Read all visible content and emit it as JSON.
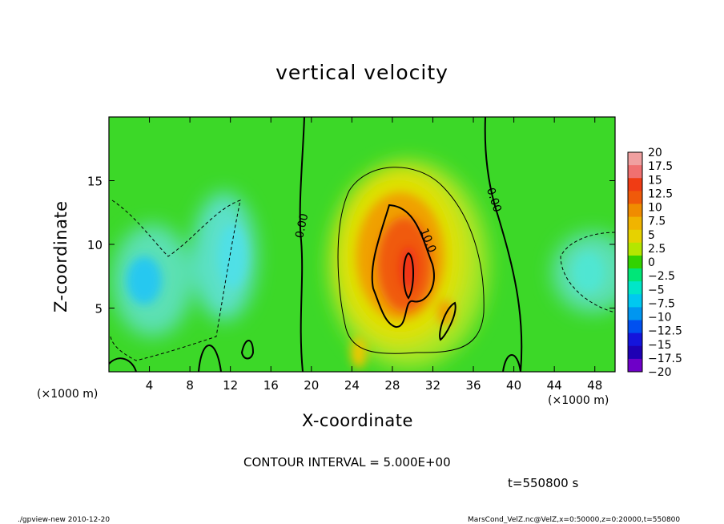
{
  "chart_data": {
    "type": "heatmap",
    "title": "vertical velocity",
    "xlabel": "X-coordinate",
    "ylabel": "Z-coordinate",
    "x_unit_label": "(×1000 m)",
    "x_unit_label_right": "(×1000 m)",
    "xlim": [
      0,
      50
    ],
    "ylim": [
      0,
      20
    ],
    "x_ticks": [
      4,
      8,
      12,
      16,
      20,
      24,
      28,
      32,
      36,
      40,
      44,
      48
    ],
    "y_ticks": [
      5,
      10,
      15
    ],
    "x_tick_labels": [
      "4",
      "8",
      "12",
      "16",
      "20",
      "24",
      "28",
      "32",
      "36",
      "40",
      "44",
      "48"
    ],
    "y_tick_labels": [
      "5",
      "10",
      "15"
    ],
    "colorbar": {
      "levels": [
        20,
        17.5,
        15,
        12.5,
        10,
        7.5,
        5,
        2.5,
        0,
        -2.5,
        -5,
        -7.5,
        -10,
        -12.5,
        -15,
        -17.5,
        -20
      ],
      "labels": [
        "20",
        "17.5",
        "15",
        "12.5",
        "10",
        "7.5",
        "5",
        "2.5",
        "0",
        "−2.5",
        "−5",
        "−7.5",
        "−10",
        "−12.5",
        "−15",
        "−17.5",
        "−20"
      ],
      "colors": [
        "#f0a0a0",
        "#f07070",
        "#f03c14",
        "#f05a0a",
        "#f08c00",
        "#f0b400",
        "#e6d200",
        "#b4e600",
        "#32d200",
        "#00e678",
        "#00e6c8",
        "#00c8f0",
        "#0096f0",
        "#0050f0",
        "#1414dc",
        "#1e00b4",
        "#6e00c8"
      ]
    },
    "contour_labels": [
      {
        "text": "0.00",
        "x": 19.4,
        "z": 11.4
      },
      {
        "text": "0.00",
        "x": 37.7,
        "z": 13.4
      },
      {
        "text": "10.0",
        "x": 31.2,
        "z": 10.2
      }
    ],
    "field_features": [
      {
        "kind": "updraft_core",
        "x": 29.5,
        "z": 8.5,
        "max_value": 15
      },
      {
        "kind": "downdraft",
        "x": 3.5,
        "z": 7.5,
        "min_value": -7.5
      },
      {
        "kind": "downdraft",
        "x": 12,
        "z": 10,
        "min_value": -5
      },
      {
        "kind": "downdraft",
        "x": 47,
        "z": 8,
        "min_value": -5
      }
    ],
    "contour_interval_text": "CONTOUR INTERVAL = 5.000E+00"
  },
  "annotations": {
    "time": "t=550800 s",
    "footer_left": "./gpview-new  2010-12-20",
    "footer_right": "MarsCond_VelZ.nc@VelZ,x=0:50000,z=0:20000,t=550800"
  }
}
